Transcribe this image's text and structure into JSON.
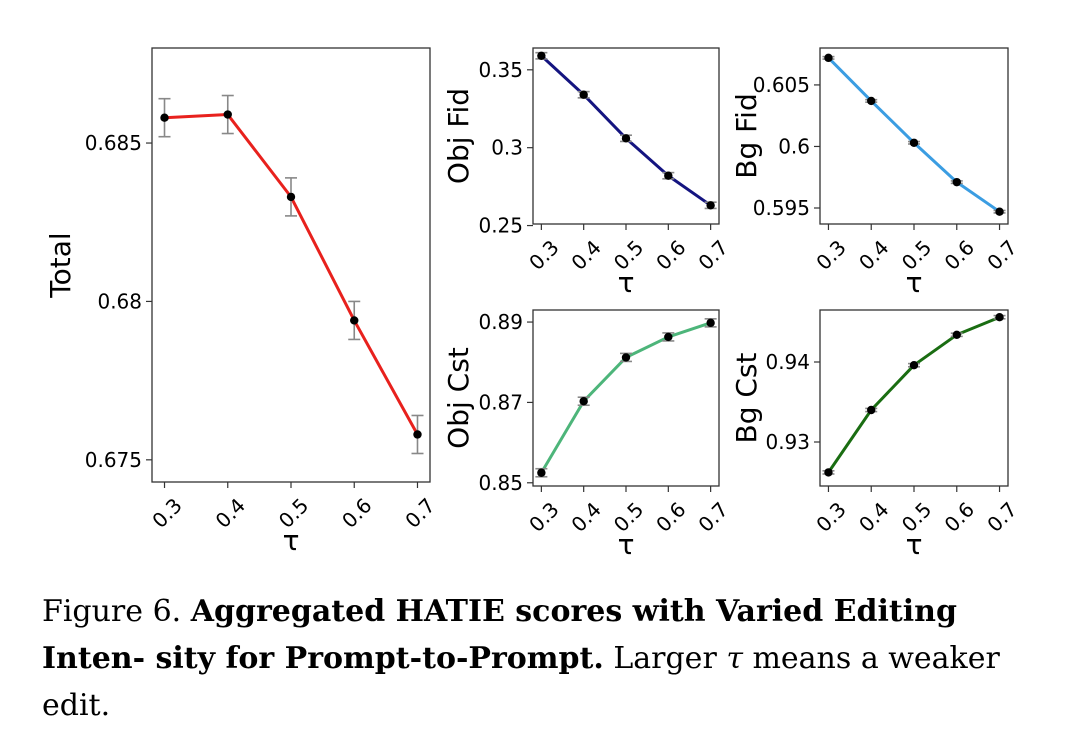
{
  "chart_data": [
    {
      "id": "total",
      "type": "line",
      "ylabel": "Total",
      "xlabel": "τ",
      "x": [
        0.3,
        0.4,
        0.5,
        0.6,
        0.7
      ],
      "xticks": [
        "0.3",
        "0.4",
        "0.5",
        "0.6",
        "0.7"
      ],
      "values": [
        0.6858,
        0.6859,
        0.6833,
        0.6794,
        0.6758
      ],
      "errors": [
        0.0006,
        0.0006,
        0.0006,
        0.0006,
        0.0006
      ],
      "ylim": [
        0.6743,
        0.688
      ],
      "yticks": [
        0.675,
        0.68,
        0.685
      ],
      "ytick_labels": [
        "0.675",
        "0.68",
        "0.685"
      ],
      "color": "#e8211d",
      "grid": false
    },
    {
      "id": "obj_fid",
      "type": "line",
      "ylabel": "Obj Fid",
      "xlabel": "τ",
      "x": [
        0.3,
        0.4,
        0.5,
        0.6,
        0.7
      ],
      "xticks": [
        "0.3",
        "0.4",
        "0.5",
        "0.6",
        "0.7"
      ],
      "values": [
        0.359,
        0.334,
        0.306,
        0.282,
        0.263
      ],
      "errors": [
        0.002,
        0.002,
        0.002,
        0.002,
        0.002
      ],
      "ylim": [
        0.251,
        0.364
      ],
      "yticks": [
        0.25,
        0.3,
        0.35
      ],
      "ytick_labels": [
        "0.25",
        "0.3",
        "0.35"
      ],
      "color": "#141480",
      "grid": false
    },
    {
      "id": "bg_fid",
      "type": "line",
      "ylabel": "Bg Fid",
      "xlabel": "τ",
      "x": [
        0.3,
        0.4,
        0.5,
        0.6,
        0.7
      ],
      "xticks": [
        "0.3",
        "0.4",
        "0.5",
        "0.6",
        "0.7"
      ],
      "values": [
        0.6072,
        0.6037,
        0.6003,
        0.5971,
        0.5947
      ],
      "errors": [
        0.0001,
        0.0001,
        0.0001,
        0.0001,
        0.0001
      ],
      "ylim": [
        0.5937,
        0.608
      ],
      "yticks": [
        0.595,
        0.6,
        0.605
      ],
      "ytick_labels": [
        "0.595",
        "0.6",
        "0.605"
      ],
      "color": "#3b9de2",
      "grid": false
    },
    {
      "id": "obj_cst",
      "type": "line",
      "ylabel": "Obj Cst",
      "xlabel": "τ",
      "x": [
        0.3,
        0.4,
        0.5,
        0.6,
        0.7
      ],
      "xticks": [
        "0.3",
        "0.4",
        "0.5",
        "0.6",
        "0.7"
      ],
      "values": [
        0.8525,
        0.8703,
        0.8812,
        0.8863,
        0.8898
      ],
      "errors": [
        0.001,
        0.001,
        0.001,
        0.001,
        0.001
      ],
      "ylim": [
        0.8492,
        0.893
      ],
      "yticks": [
        0.85,
        0.87,
        0.89
      ],
      "ytick_labels": [
        "0.85",
        "0.87",
        "0.89"
      ],
      "color": "#4db57a",
      "grid": false
    },
    {
      "id": "bg_cst",
      "type": "line",
      "ylabel": "Bg Cst",
      "xlabel": "τ",
      "x": [
        0.3,
        0.4,
        0.5,
        0.6,
        0.7
      ],
      "xticks": [
        "0.3",
        "0.4",
        "0.5",
        "0.6",
        "0.7"
      ],
      "values": [
        0.9262,
        0.934,
        0.9396,
        0.9434,
        0.9456
      ],
      "errors": [
        0.0002,
        0.0002,
        0.0002,
        0.0002,
        0.0002
      ],
      "ylim": [
        0.9245,
        0.9465
      ],
      "yticks": [
        0.93,
        0.94
      ],
      "ytick_labels": [
        "0.93",
        "0.94"
      ],
      "color": "#1a6d12",
      "grid": false
    }
  ],
  "caption": {
    "prefix": "Figure 6. ",
    "bold": "Aggregated HATIE scores with Varied Editing Inten- sity for Prompt-to-Prompt.",
    "text_before_symbol": " Larger ",
    "symbol": "τ",
    "text_after_symbol": " means a weaker edit."
  }
}
